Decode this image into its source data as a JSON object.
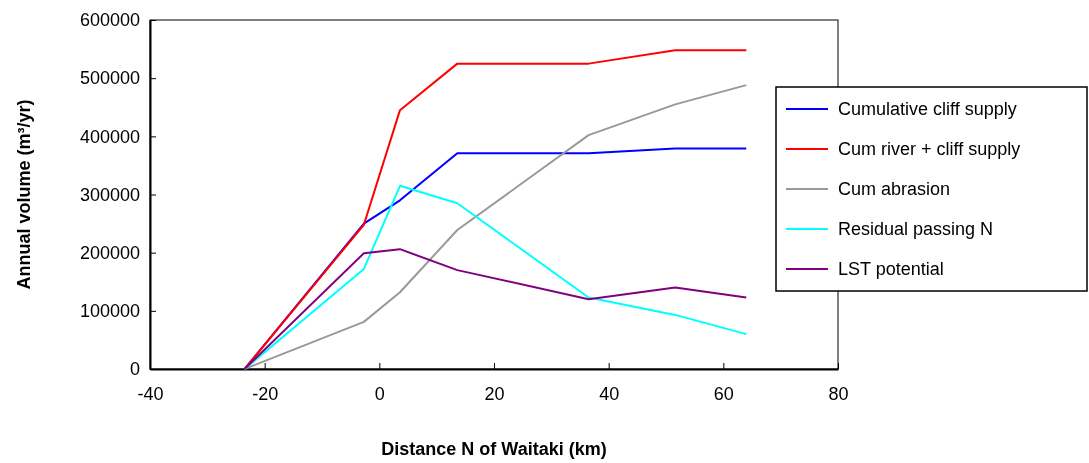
{
  "chart_data": {
    "type": "line",
    "xlabel": "Distance N of Waitaki (km)",
    "ylabel": "Annual volume (m³/yr)",
    "x": [
      -23.5,
      -2.7,
      3.6,
      13.6,
      36.5,
      51.6,
      64
    ],
    "xlim": [
      -40,
      80
    ],
    "xticks": [
      -40,
      -20,
      0,
      20,
      40,
      60,
      80
    ],
    "ylim": [
      0,
      600000
    ],
    "yticks": [
      0,
      100000,
      200000,
      300000,
      400000,
      500000,
      600000
    ],
    "grid": false,
    "legend": "right",
    "marker": "none",
    "line_style": "solid",
    "series": [
      {
        "name": "Cumulative cliff supply",
        "color": "#0000ff",
        "values": [
          0,
          250000,
          290000,
          371000,
          371000,
          379000,
          379000
        ]
      },
      {
        "name": "Cum river + cliff supply",
        "color": "#ff0000",
        "values": [
          0,
          248000,
          445000,
          525000,
          525000,
          548000,
          548000
        ]
      },
      {
        "name": "Cum abrasion",
        "color": "#999999",
        "values": [
          0,
          81000,
          132000,
          239000,
          402000,
          455000,
          488000
        ]
      },
      {
        "name": "Residual passing N",
        "color": "#00ffff",
        "values": [
          0,
          172000,
          315000,
          285000,
          123000,
          93000,
          60000
        ]
      },
      {
        "name": "LST potential",
        "color": "#800080",
        "values": [
          0,
          199000,
          206000,
          170000,
          120000,
          140000,
          123000
        ]
      }
    ]
  }
}
